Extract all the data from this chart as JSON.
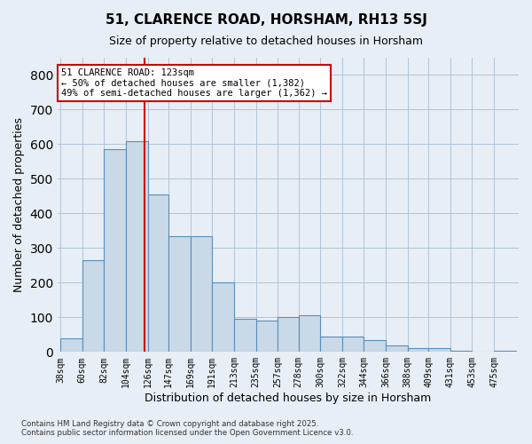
{
  "title": "51, CLARENCE ROAD, HORSHAM, RH13 5SJ",
  "subtitle": "Size of property relative to detached houses in Horsham",
  "xlabel": "Distribution of detached houses by size in Horsham",
  "ylabel": "Number of detached properties",
  "footer_line1": "Contains HM Land Registry data © Crown copyright and database right 2025.",
  "footer_line2": "Contains public sector information licensed under the Open Government Licence v3.0.",
  "annotation_line1": "51 CLARENCE ROAD: 123sqm",
  "annotation_line2": "← 50% of detached houses are smaller (1,382)",
  "annotation_line3": "49% of semi-detached houses are larger (1,362) →",
  "bar_color": "#c9d9e8",
  "bar_edge_color": "#5b8db8",
  "grid_color": "#b0c4d8",
  "vline_color": "#cc0000",
  "vline_x": 123,
  "categories": [
    "38sqm",
    "60sqm",
    "82sqm",
    "104sqm",
    "126sqm",
    "147sqm",
    "169sqm",
    "191sqm",
    "213sqm",
    "235sqm",
    "257sqm",
    "278sqm",
    "300sqm",
    "322sqm",
    "344sqm",
    "366sqm",
    "388sqm",
    "409sqm",
    "431sqm",
    "453sqm",
    "475sqm"
  ],
  "bin_edges": [
    38,
    60,
    82,
    104,
    126,
    147,
    169,
    191,
    213,
    235,
    257,
    278,
    300,
    322,
    344,
    366,
    388,
    409,
    431,
    453,
    475,
    497
  ],
  "values": [
    40,
    265,
    585,
    610,
    455,
    335,
    335,
    200,
    95,
    90,
    100,
    105,
    45,
    45,
    35,
    20,
    12,
    10,
    3,
    2,
    3
  ],
  "ylim": [
    0,
    850
  ],
  "yticks": [
    0,
    100,
    200,
    300,
    400,
    500,
    600,
    700,
    800
  ],
  "background_color": "#e8eef5"
}
